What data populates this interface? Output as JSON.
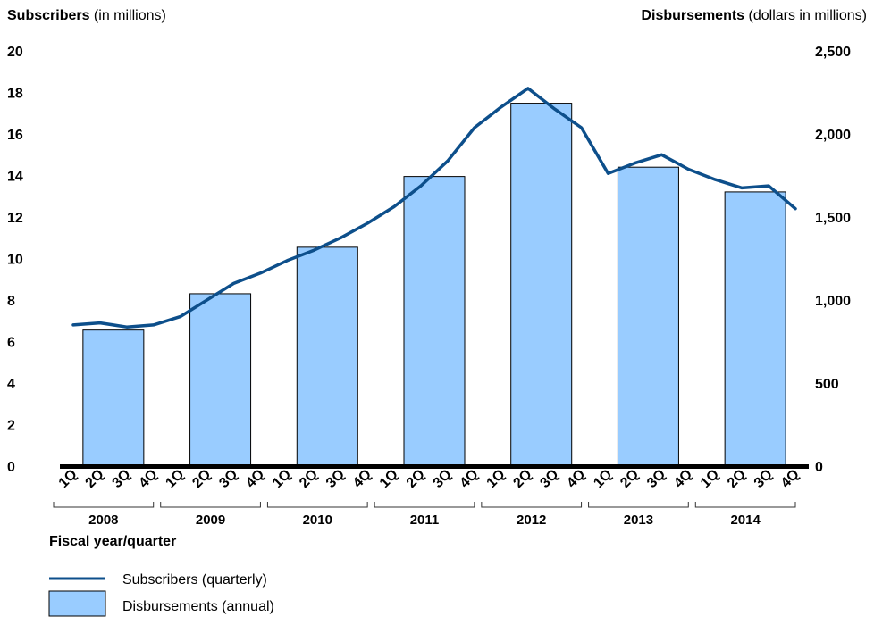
{
  "chart_data": {
    "type": "bar+line",
    "left_axis_title_bold": "Subscribers",
    "left_axis_title_rest": " (in millions)",
    "right_axis_title_bold": "Disbursements",
    "right_axis_title_rest": " (dollars in millions)",
    "xlabel": "Fiscal year/quarter",
    "left_ylim": [
      0,
      20
    ],
    "right_ylim": [
      0,
      2500
    ],
    "left_ticks": [
      "0",
      "2",
      "4",
      "6",
      "8",
      "10",
      "12",
      "14",
      "16",
      "18",
      "20"
    ],
    "right_ticks": [
      "0",
      "500",
      "1,000",
      "1,500",
      "2,000",
      "2,500"
    ],
    "years": [
      "2008",
      "2009",
      "2010",
      "2011",
      "2012",
      "2013",
      "2014"
    ],
    "quarters": [
      "1Q",
      "2Q",
      "3Q",
      "4Q"
    ],
    "series": [
      {
        "name": "Disbursements (annual)",
        "type": "bar",
        "color": "#99ccff",
        "axis": "right",
        "values": [
          819,
          1038,
          1318,
          1744,
          2185,
          1800,
          1651
        ]
      },
      {
        "name": "Subscribers (quarterly)",
        "type": "line",
        "color": "#0d4f8b",
        "axis": "left",
        "values": [
          6.8,
          6.9,
          6.7,
          6.8,
          7.2,
          8.0,
          8.8,
          9.3,
          9.9,
          10.4,
          11.0,
          11.7,
          12.5,
          13.5,
          14.7,
          16.3,
          17.3,
          18.2,
          17.2,
          16.3,
          14.1,
          14.6,
          15.0,
          14.3,
          13.8,
          13.4,
          13.5,
          12.4
        ]
      }
    ],
    "legend": {
      "position": "bottom-left",
      "line_label": "Subscribers (quarterly)",
      "bar_label": "Disbursements (annual)"
    }
  }
}
